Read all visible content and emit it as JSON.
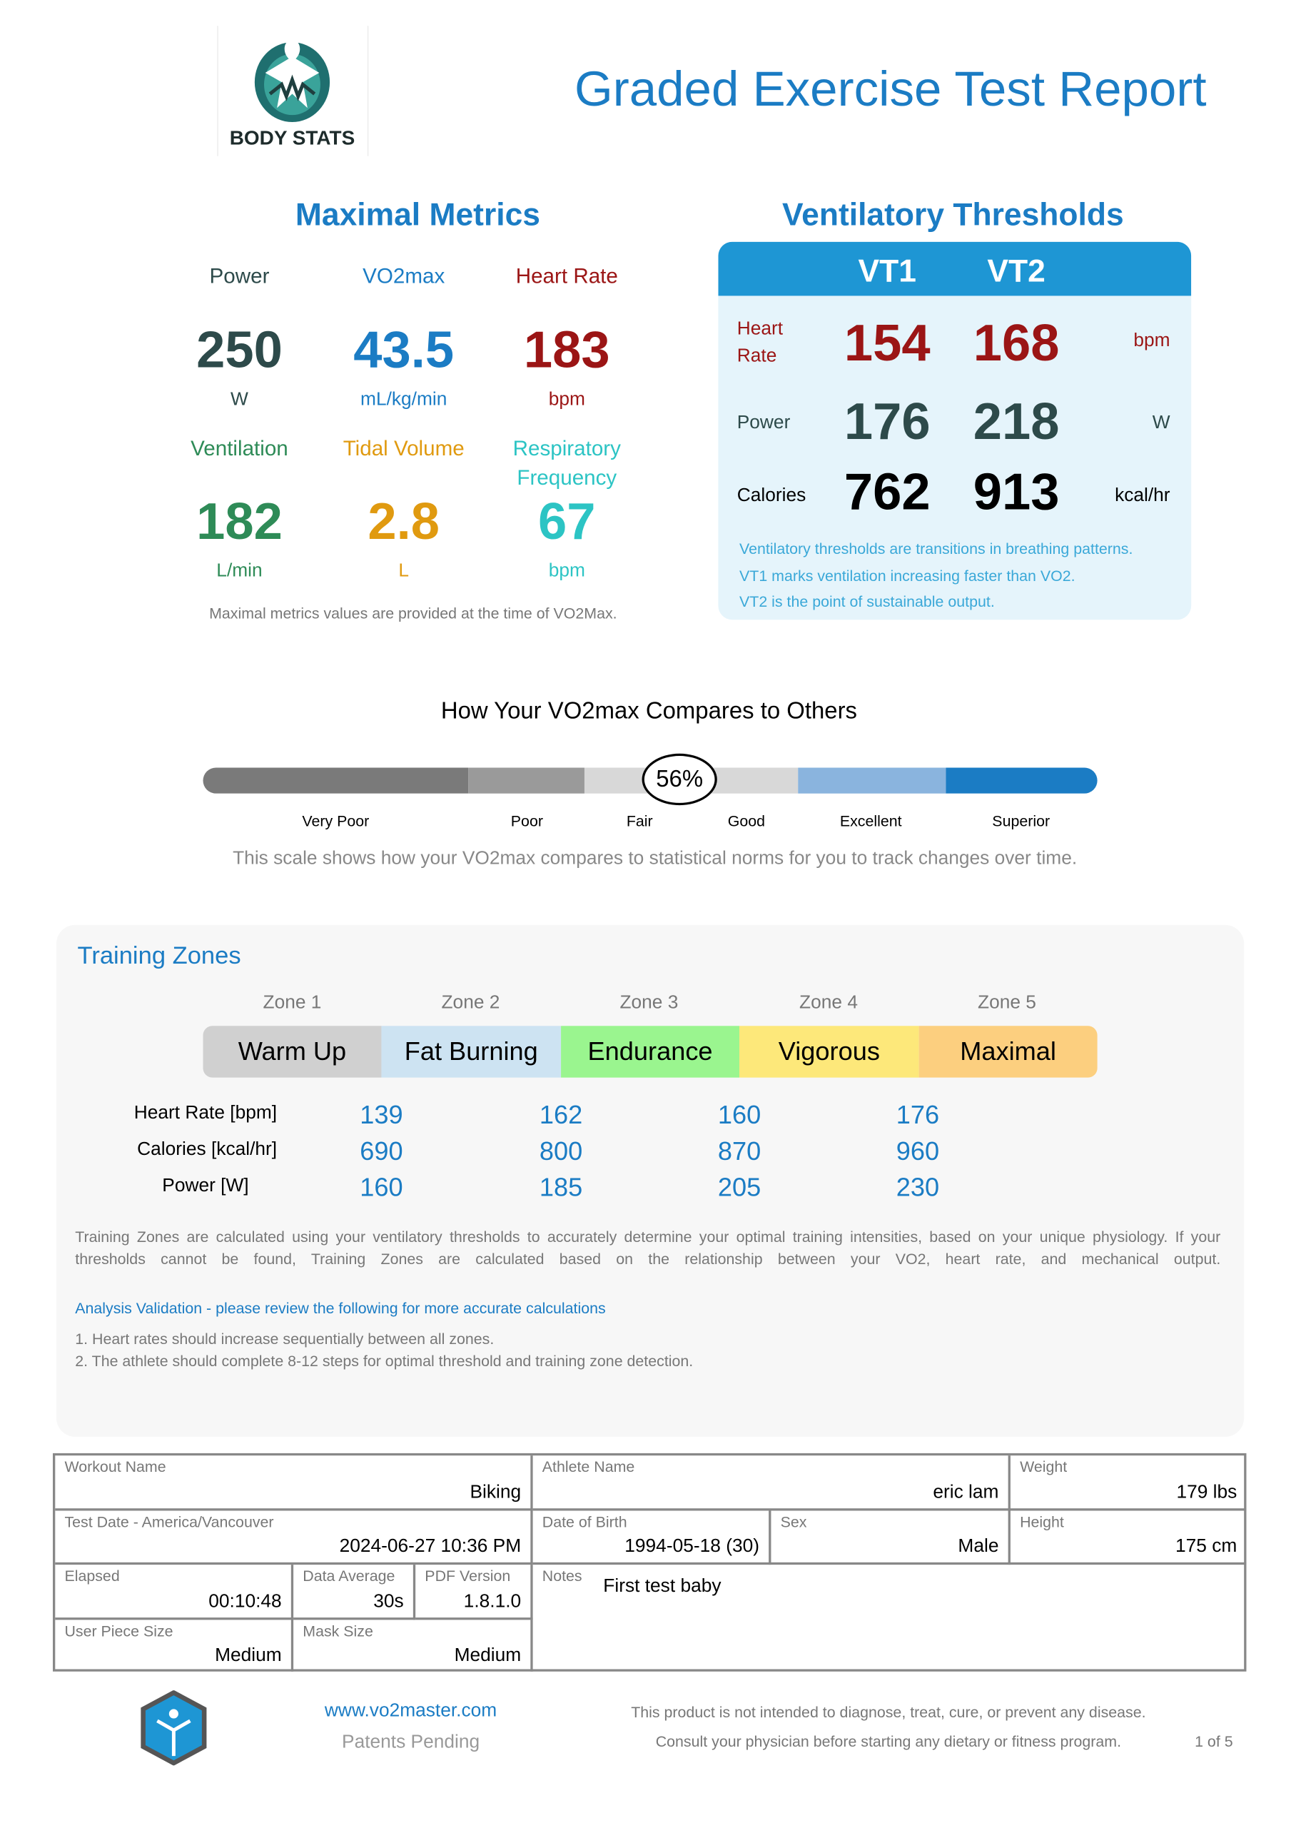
{
  "header": {
    "logo_text": "BODY STATS",
    "title": "Graded Exercise Test Report"
  },
  "maximal": {
    "title": "Maximal Metrics",
    "metrics": [
      {
        "label": "Power",
        "value": "250",
        "unit": "W",
        "color": "#2d4a4a"
      },
      {
        "label": "VO2max",
        "value": "43.5",
        "unit": "mL/kg/min",
        "color": "#1b7cc4"
      },
      {
        "label": "Heart Rate",
        "value": "183",
        "unit": "bpm",
        "color": "#9b1515"
      },
      {
        "label": "Ventilation",
        "value": "182",
        "unit": "L/min",
        "color": "#2e8b57"
      },
      {
        "label": "Tidal Volume",
        "value": "2.8",
        "unit": "L",
        "color": "#e09a10"
      },
      {
        "label": "Respiratory Frequency",
        "label1": "Respiratory",
        "label2": "Frequency",
        "value": "67",
        "unit": "bpm",
        "color": "#2cc4c4"
      }
    ],
    "note": "Maximal metrics values are provided at the time of VO2Max."
  },
  "vt": {
    "title": "Ventilatory Thresholds",
    "cols": [
      "VT1",
      "VT2"
    ],
    "rows": [
      {
        "label1": "Heart",
        "label2": "Rate",
        "vt1": "154",
        "vt2": "168",
        "unit": "bpm",
        "color": "#9b1515"
      },
      {
        "label": "Power",
        "vt1": "176",
        "vt2": "218",
        "unit": "W",
        "color": "#2d4a4a"
      },
      {
        "label": "Calories",
        "vt1": "762",
        "vt2": "913",
        "unit": "kcal/hr",
        "color": "#000000"
      }
    ],
    "notes": [
      "Ventilatory thresholds are transitions in breathing patterns.",
      "VT1 marks ventilation increasing faster than VO2.",
      "VT2 is the point of sustainable output."
    ]
  },
  "compare": {
    "title": "How Your VO2max Compares to Others",
    "percentile": "56%",
    "percentile_value": 56,
    "levels": [
      "Very Poor",
      "Poor",
      "Fair",
      "Good",
      "Excellent",
      "Superior"
    ],
    "note": "This scale shows how your VO2max compares to statistical norms for you to track changes over time."
  },
  "zones": {
    "title": "Training Zones",
    "zones": [
      {
        "label": "Zone 1",
        "name": "Warm Up",
        "color": "#d0d0d0"
      },
      {
        "label": "Zone 2",
        "name": "Fat Burning",
        "color": "#cde3f2"
      },
      {
        "label": "Zone 3",
        "name": "Endurance",
        "color": "#9af58f"
      },
      {
        "label": "Zone 4",
        "name": "Vigorous",
        "color": "#fde87a"
      },
      {
        "label": "Zone 5",
        "name": "Maximal",
        "color": "#fccf7f"
      }
    ],
    "rows": [
      {
        "label": "Heart Rate [bpm]",
        "values": [
          "139",
          "162",
          "160",
          "176"
        ]
      },
      {
        "label": "Calories [kcal/hr]",
        "values": [
          "690",
          "800",
          "870",
          "960"
        ]
      },
      {
        "label": "Power [W]",
        "values": [
          "160",
          "185",
          "205",
          "230"
        ]
      }
    ],
    "description": "Training Zones are calculated using your ventilatory thresholds to accurately determine your optimal training intensities, based on your unique physiology. If your thresholds cannot be found, Training Zones are calculated based on the relationship between your VO2, heart rate, and mechanical output.",
    "validation_title": "Analysis Validation - please review the following for more accurate calculations",
    "validation_items": [
      "1. Heart rates should increase sequentially between all zones.",
      "2. The athlete should complete 8-12 steps for optimal threshold and training zone detection."
    ]
  },
  "info": {
    "workout": {
      "label": "Workout Name",
      "value": "Biking"
    },
    "athlete": {
      "label": "Athlete Name",
      "value": "eric lam"
    },
    "weight": {
      "label": "Weight",
      "value": "179 lbs"
    },
    "test_date": {
      "label": "Test Date - America/Vancouver",
      "value": "2024-06-27 10:36 PM"
    },
    "dob": {
      "label": "Date of Birth",
      "value": "1994-05-18 (30)"
    },
    "sex": {
      "label": "Sex",
      "value": "Male"
    },
    "height": {
      "label": "Height",
      "value": "175 cm"
    },
    "elapsed": {
      "label": "Elapsed",
      "value": "00:10:48"
    },
    "data_average": {
      "label": "Data Average",
      "value": "30s"
    },
    "pdf_version": {
      "label": "PDF Version",
      "value": "1.8.1.0"
    },
    "notes": {
      "label": "Notes",
      "value": "First test baby"
    },
    "user_piece": {
      "label": "User Piece Size",
      "value": "Medium"
    },
    "mask": {
      "label": "Mask Size",
      "value": "Medium"
    }
  },
  "footer": {
    "website": "www.vo2master.com",
    "patents": "Patents Pending",
    "disclaimer": "This product is not intended to diagnose, treat, cure, or prevent any disease.",
    "consult": "Consult your physician before starting any dietary or fitness program.",
    "page": "1 of 5"
  }
}
